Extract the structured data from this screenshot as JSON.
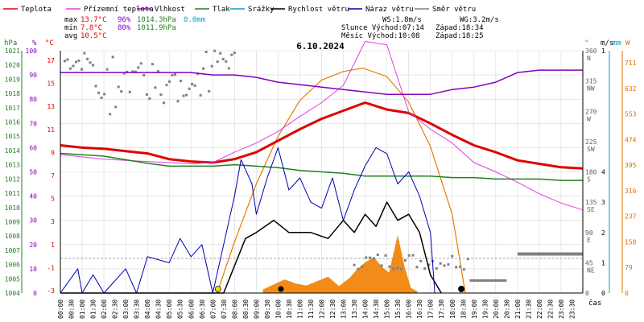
{
  "chart_data": {
    "type": "line",
    "title": "6.10.2024",
    "legend": [
      {
        "name": "Teplota",
        "color": "#e00000"
      },
      {
        "name": "Přízemní teplota",
        "color": "#e040e0"
      },
      {
        "name": "Vlhkost",
        "color": "#8000c0"
      },
      {
        "name": "Tlak",
        "color": "#208020"
      },
      {
        "name": "Srážky",
        "color": "#00a0d0"
      },
      {
        "name": "Rychlost větru",
        "color": "#000000"
      },
      {
        "name": "Náraz větru",
        "color": "#0000b0"
      },
      {
        "name": "Směr větru",
        "color": "#808080"
      }
    ],
    "stats": {
      "labels": [
        "max",
        "min",
        "avg"
      ],
      "temp": [
        "13.7°C",
        "7.8°C",
        "10.5°C"
      ],
      "hum": [
        "96%",
        "80%",
        ""
      ],
      "press": [
        "1014.3hPa",
        "1011.9hPa",
        ""
      ],
      "rain": [
        "0.0mm",
        "",
        ""
      ],
      "ws": "WS:1.8m/s",
      "wg": "WG:3.2m/s",
      "sun": "Slunce Východ:07:14",
      "sunset": "Západ:18:34",
      "moon": "Měsíc Východ:10:08",
      "moonset": "Západ:18:25"
    },
    "axes": {
      "hpa_unit": "hPa",
      "pct_unit": "%",
      "c_unit": "°C",
      "dir_unit": "°",
      "ms_unit": "m/s",
      "mm_unit": "mm",
      "sun_unit": "W",
      "hpa_ticks": [
        "1021",
        "1020",
        "1019",
        "1018",
        "1017",
        "1016",
        "1015",
        "1014",
        "1013",
        "1012",
        "1011",
        "1010",
        "1009",
        "1008",
        "1007",
        "1006",
        "1005",
        "1004"
      ],
      "pct_ticks": [
        "100",
        "90",
        "80",
        "70",
        "60",
        "50",
        "40",
        "30",
        "20",
        "10",
        "0"
      ],
      "c_ticks": [
        "17",
        "15",
        "13",
        "11",
        "9",
        "7",
        "5",
        "3",
        "1",
        "-1",
        "-3"
      ],
      "dir_ticks": [
        [
          "360",
          "N"
        ],
        [
          "315",
          "NW"
        ],
        [
          "270",
          "W"
        ],
        [
          "225",
          "SW"
        ],
        [
          "180",
          "S"
        ],
        [
          "135",
          "SE"
        ],
        [
          "90",
          "E"
        ],
        [
          "45",
          "NE"
        ],
        [
          "0",
          ""
        ]
      ],
      "ms_ticks": [
        "1",
        "",
        "",
        "",
        "4",
        "3",
        "2",
        "1",
        "0"
      ],
      "w_ticks": [
        "711",
        "632",
        "553",
        "474",
        "395",
        "316",
        "237",
        "158",
        "79",
        "0"
      ],
      "time_ticks": [
        "00:00",
        "00:30",
        "01:00",
        "01:30",
        "02:00",
        "02:30",
        "03:00",
        "03:30",
        "04:00",
        "04:30",
        "05:00",
        "05:30",
        "06:00",
        "06:30",
        "07:00",
        "07:30",
        "08:00",
        "08:30",
        "09:00",
        "09:30",
        "10:00",
        "10:30",
        "11:00",
        "11:30",
        "12:00",
        "12:30",
        "13:00",
        "13:30",
        "14:00",
        "14:30",
        "15:00",
        "15:30",
        "16:00",
        "16:30",
        "17:00",
        "17:30",
        "18:00",
        "18:30",
        "19:00",
        "19:30",
        "20:00",
        "20:30",
        "21:00",
        "21:30",
        "22:00",
        "22:30",
        "23:00",
        "23:30"
      ],
      "time_label": "čas",
      "temp_range": [
        -3,
        18
      ],
      "hum_range": [
        0,
        100
      ],
      "press_range": [
        1004,
        1021
      ],
      "wind_range": [
        0,
        4
      ],
      "dir_range": [
        0,
        360
      ],
      "sun_range": [
        0,
        711
      ]
    },
    "series": [
      {
        "name": "Teplota",
        "x": [
          0,
          1,
          2,
          3,
          4,
          5,
          6,
          7,
          8,
          9,
          10,
          11,
          12,
          13,
          14,
          15,
          16,
          17,
          18,
          19,
          20,
          21,
          22,
          23,
          24
        ],
        "values": [
          9.8,
          9.6,
          9.5,
          9.3,
          9.1,
          8.6,
          8.4,
          8.3,
          8.6,
          9.2,
          10.2,
          11.2,
          12.1,
          12.8,
          13.5,
          12.9,
          12.6,
          11.7,
          10.7,
          9.8,
          9.2,
          8.5,
          8.2,
          7.9,
          7.8
        ]
      },
      {
        "name": "Přízemní teplota",
        "x": [
          0,
          1,
          2,
          3,
          4,
          5,
          6,
          7,
          8,
          9,
          10,
          11,
          12,
          13,
          14,
          15,
          16,
          17,
          18,
          19,
          20,
          21,
          22,
          23,
          24
        ],
        "values": [
          9.0,
          8.8,
          8.6,
          8.5,
          8.4,
          8.3,
          8.2,
          8.3,
          9.2,
          10.0,
          11.0,
          12.3,
          13.5,
          15.0,
          18.8,
          18.5,
          12.7,
          11.2,
          10.0,
          8.3,
          7.5,
          6.6,
          5.6,
          4.8,
          4.2
        ]
      },
      {
        "name": "Vlhkost",
        "x": [
          0,
          2,
          4,
          6,
          7,
          8,
          9,
          10,
          11,
          12,
          13,
          14,
          15,
          16,
          17,
          18,
          19,
          20,
          21,
          22,
          23,
          24
        ],
        "values": [
          91,
          91,
          91,
          91,
          90,
          90,
          89,
          87,
          86,
          85,
          84,
          83,
          82,
          82,
          82,
          84,
          85,
          87,
          91,
          92,
          92,
          92
        ]
      },
      {
        "name": "Tlak",
        "x": [
          0,
          2,
          4,
          5,
          7,
          8,
          9,
          10,
          11,
          12,
          13,
          14,
          15,
          16,
          17,
          18,
          19,
          20,
          21,
          22,
          23,
          24
        ],
        "values": [
          1013.8,
          1013.6,
          1013.1,
          1012.9,
          1012.9,
          1013.0,
          1012.9,
          1012.8,
          1012.6,
          1012.5,
          1012.4,
          1012.2,
          1012.2,
          1012.2,
          1012.2,
          1012.1,
          1012.1,
          1012.0,
          1012.0,
          1012.0,
          1011.9,
          1011.9
        ]
      },
      {
        "name": "Rychlost větru",
        "x": [
          0,
          7.5,
          8.5,
          9.0,
          9.8,
          10.5,
          11.5,
          12.3,
          13.0,
          13.5,
          14.0,
          14.5,
          15.0,
          15.5,
          16.0,
          16.5,
          17.0,
          17.5
        ],
        "values": [
          0.0,
          0.0,
          0.9,
          1.0,
          1.2,
          1.0,
          1.0,
          0.9,
          1.2,
          1.0,
          1.3,
          1.1,
          1.5,
          1.2,
          1.3,
          1.0,
          0.3,
          0.0
        ]
      },
      {
        "name": "Náraz větru",
        "x": [
          0,
          0.8,
          1.0,
          1.5,
          2.0,
          3.0,
          3.5,
          4.0,
          5.0,
          5.5,
          6.0,
          6.5,
          7.0,
          8.0,
          8.3,
          8.8,
          9.0,
          9.5,
          10.0,
          10.5,
          11.0,
          11.5,
          12.0,
          12.5,
          13.0,
          13.5,
          14.0,
          14.5,
          15.0,
          15.5,
          16.0,
          16.5,
          17.0,
          17.2
        ],
        "values": [
          0.0,
          0.4,
          0.0,
          0.3,
          0.0,
          0.4,
          0.0,
          0.6,
          0.5,
          0.9,
          0.6,
          0.8,
          0.0,
          1.6,
          2.2,
          1.8,
          1.3,
          1.9,
          2.4,
          1.7,
          1.9,
          1.5,
          1.4,
          1.9,
          1.2,
          1.7,
          2.1,
          2.4,
          2.3,
          1.8,
          2.0,
          1.6,
          1.0,
          0.0
        ]
      },
      {
        "name": "Slunce",
        "x": [
          7.2,
          8,
          9,
          10,
          11,
          12,
          13,
          13.9,
          15,
          16,
          17,
          18,
          18.6
        ],
        "values": [
          0,
          150,
          320,
          460,
          565,
          625,
          650,
          660,
          635,
          560,
          430,
          230,
          0
        ]
      }
    ],
    "wind_direction_current": "180"
  }
}
